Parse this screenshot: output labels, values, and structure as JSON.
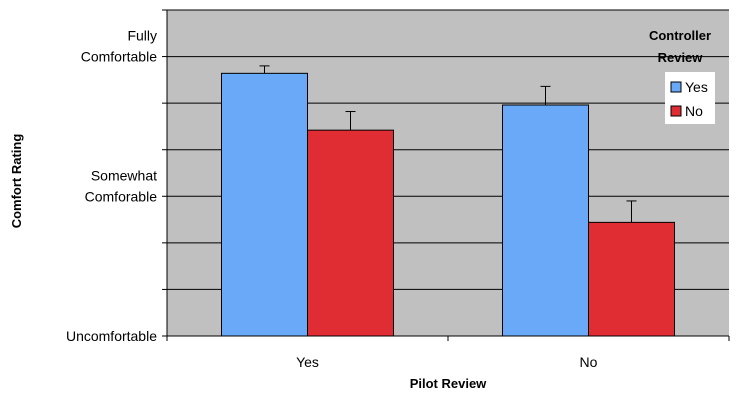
{
  "chart_data": {
    "type": "bar",
    "categories": [
      "Yes",
      "No"
    ],
    "series": [
      {
        "name": "Yes",
        "color": "#6AA8F8",
        "values": [
          2.82,
          2.48
        ],
        "error": [
          0.08,
          0.2
        ]
      },
      {
        "name": "No",
        "color": "#DF2D33",
        "values": [
          2.21,
          1.22
        ],
        "error": [
          0.2,
          0.23
        ]
      }
    ],
    "ylim": [
      0,
      3.5
    ],
    "ytick_values": [
      0,
      1.5,
      3
    ],
    "ytick_labels": [
      [
        "Uncomfortable"
      ],
      [
        "Somewhat",
        "Comforable"
      ],
      [
        "Fully",
        "Comfortable"
      ]
    ],
    "gridlines": [
      0.5,
      1,
      1.5,
      2,
      2.5,
      3,
      3.5
    ],
    "xlabel": "Pilot Review",
    "ylabel": "Comfort Rating",
    "legend": {
      "title_lines": [
        "Controller",
        "Review"
      ],
      "position": "top-right"
    },
    "plot_bg": "#C0C0C0"
  }
}
